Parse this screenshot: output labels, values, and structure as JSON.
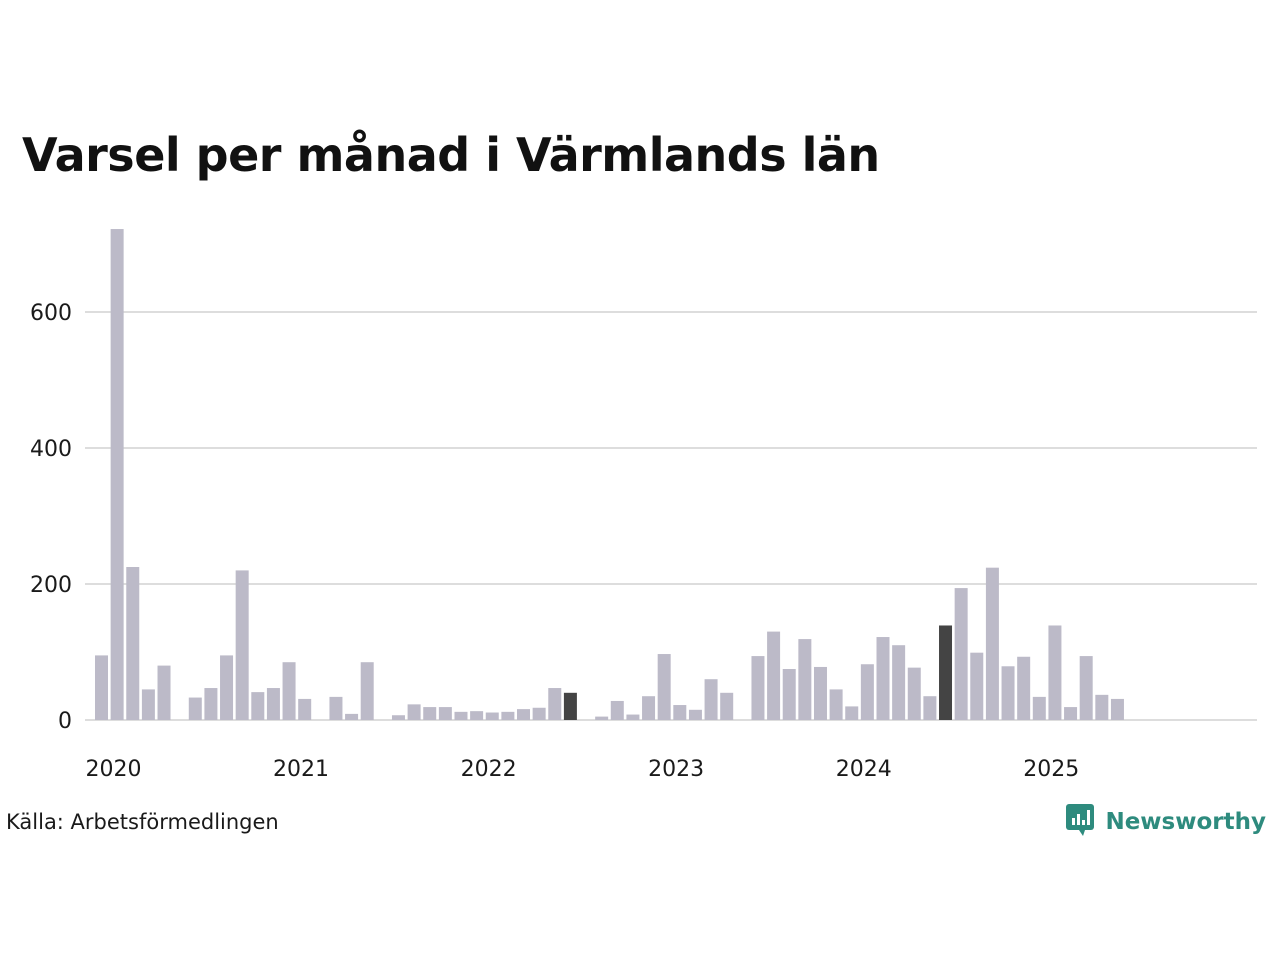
{
  "chart_data": {
    "type": "bar",
    "title": "Varsel per månad i Värmlands län",
    "xlabel": "",
    "ylabel": "",
    "ylim": [
      0,
      725
    ],
    "yticks": [
      0,
      200,
      400,
      600
    ],
    "xtick_labels": [
      "2020",
      "2021",
      "2022",
      "2023",
      "2024",
      "2025"
    ],
    "grid": true,
    "start_month": "2020-01",
    "categories": [
      "2020-01",
      "2020-02",
      "2020-03",
      "2020-04",
      "2020-05",
      "2020-06",
      "2020-07",
      "2020-08",
      "2020-09",
      "2020-10",
      "2020-11",
      "2020-12",
      "2021-01",
      "2021-02",
      "2021-03",
      "2021-04",
      "2021-05",
      "2021-06",
      "2021-07",
      "2021-08",
      "2021-09",
      "2021-10",
      "2021-11",
      "2021-12",
      "2022-01",
      "2022-02",
      "2022-03",
      "2022-04",
      "2022-05",
      "2022-06",
      "2022-07",
      "2022-08",
      "2022-09",
      "2022-10",
      "2022-11",
      "2022-12",
      "2023-01",
      "2023-02",
      "2023-03",
      "2023-04",
      "2023-05",
      "2023-06",
      "2023-07",
      "2023-08",
      "2023-09",
      "2023-10",
      "2023-11",
      "2023-12",
      "2024-01",
      "2024-02",
      "2024-03",
      "2024-04",
      "2024-05",
      "2024-06",
      "2024-07",
      "2024-08",
      "2024-09",
      "2024-10",
      "2024-11",
      "2024-12",
      "2025-01",
      "2025-02",
      "2025-03",
      "2025-04",
      "2025-05",
      "2025-06",
      "2025-07"
    ],
    "values": [
      95,
      722,
      225,
      45,
      80,
      0,
      33,
      47,
      95,
      220,
      41,
      47,
      85,
      31,
      0,
      34,
      9,
      85,
      0,
      7,
      23,
      19,
      19,
      12,
      13,
      11,
      12,
      16,
      18,
      47,
      40,
      0,
      5,
      28,
      8,
      35,
      97,
      22,
      15,
      60,
      40,
      0,
      94,
      130,
      75,
      119,
      78,
      45,
      20,
      82,
      122,
      110,
      77,
      35,
      139,
      194,
      99,
      224,
      79,
      93,
      34,
      139,
      19,
      94,
      37,
      31,
      0
    ],
    "highlight_dark": [
      "2021-07",
      "2022-07",
      "2024-07"
    ],
    "highlight_current": "2025-07",
    "colors": {
      "bar": "#bcbac8",
      "bar_dark": "#444444",
      "bar_current": "#1f9486",
      "grid": "#dddddd",
      "axis_text": "#1a1a1a"
    }
  },
  "footer": {
    "source": "Källa: Arbetsförmedlingen",
    "brand": "Newsworthy",
    "brand_color": "#2e8b7e"
  }
}
